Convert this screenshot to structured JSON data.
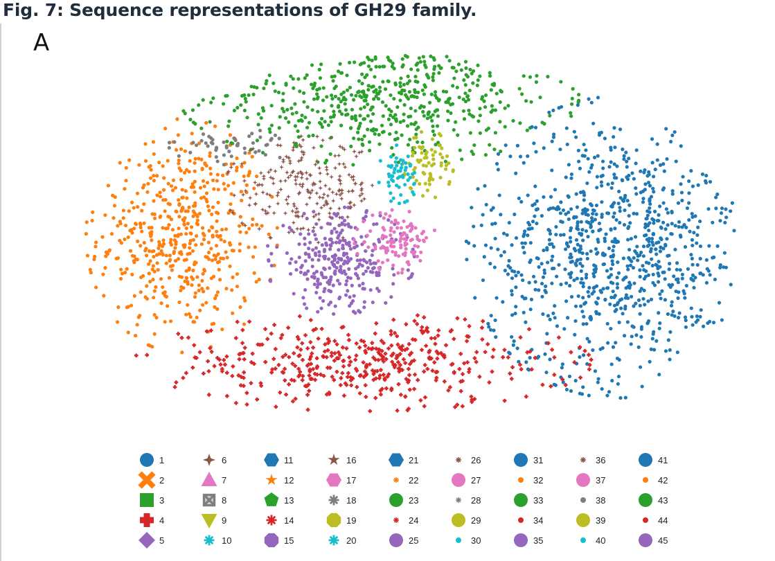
{
  "figure": {
    "title": "Fig. 7: Sequence representations of GH29 family.",
    "panel": "A"
  },
  "chart_data": {
    "type": "scatter",
    "title": "",
    "xlabel": "",
    "ylabel": "",
    "grid": false,
    "legend_placement": "bottom",
    "legend": [
      {
        "label": "1",
        "marker": "circle",
        "color": "#1f77b4",
        "size": "large"
      },
      {
        "label": "2",
        "marker": "x",
        "color": "#ff7f0e",
        "size": "large"
      },
      {
        "label": "3",
        "marker": "square",
        "color": "#2ca02c",
        "size": "large"
      },
      {
        "label": "4",
        "marker": "plus",
        "color": "#d62728",
        "size": "large"
      },
      {
        "label": "5",
        "marker": "diamond",
        "color": "#9467bd",
        "size": "large"
      },
      {
        "label": "6",
        "marker": "star4",
        "color": "#8c564b",
        "size": "medium"
      },
      {
        "label": "7",
        "marker": "triangle",
        "color": "#e377c2",
        "size": "large"
      },
      {
        "label": "8",
        "marker": "xsquare",
        "color": "#7f7f7f",
        "size": "medium"
      },
      {
        "label": "9",
        "marker": "triangle-down",
        "color": "#bcbd22",
        "size": "large"
      },
      {
        "label": "10",
        "marker": "asterisk",
        "color": "#17becf",
        "size": "medium"
      },
      {
        "label": "11",
        "marker": "hexagon",
        "color": "#1f77b4",
        "size": "large"
      },
      {
        "label": "12",
        "marker": "star",
        "color": "#ff7f0e",
        "size": "medium"
      },
      {
        "label": "13",
        "marker": "pentagon",
        "color": "#2ca02c",
        "size": "large"
      },
      {
        "label": "14",
        "marker": "asterisk",
        "color": "#d62728",
        "size": "medium"
      },
      {
        "label": "15",
        "marker": "octagon",
        "color": "#9467bd",
        "size": "large"
      },
      {
        "label": "16",
        "marker": "star",
        "color": "#8c564b",
        "size": "medium"
      },
      {
        "label": "17",
        "marker": "hexagon",
        "color": "#e377c2",
        "size": "large"
      },
      {
        "label": "18",
        "marker": "asterisk",
        "color": "#7f7f7f",
        "size": "medium"
      },
      {
        "label": "19",
        "marker": "octagon",
        "color": "#bcbd22",
        "size": "large"
      },
      {
        "label": "20",
        "marker": "asterisk",
        "color": "#17becf",
        "size": "medium"
      },
      {
        "label": "21",
        "marker": "hexagon",
        "color": "#1f77b4",
        "size": "large"
      },
      {
        "label": "22",
        "marker": "asterisk",
        "color": "#ff7f0e",
        "size": "small"
      },
      {
        "label": "23",
        "marker": "circle",
        "color": "#2ca02c",
        "size": "large"
      },
      {
        "label": "24",
        "marker": "asterisk",
        "color": "#d62728",
        "size": "small"
      },
      {
        "label": "25",
        "marker": "circle",
        "color": "#9467bd",
        "size": "large"
      },
      {
        "label": "26",
        "marker": "asterisk",
        "color": "#8c564b",
        "size": "small"
      },
      {
        "label": "27",
        "marker": "circle",
        "color": "#e377c2",
        "size": "large"
      },
      {
        "label": "28",
        "marker": "asterisk",
        "color": "#7f7f7f",
        "size": "small"
      },
      {
        "label": "29",
        "marker": "circle",
        "color": "#bcbd22",
        "size": "large"
      },
      {
        "label": "30",
        "marker": "circle",
        "color": "#17becf",
        "size": "small"
      },
      {
        "label": "31",
        "marker": "circle",
        "color": "#1f77b4",
        "size": "large"
      },
      {
        "label": "32",
        "marker": "circle",
        "color": "#ff7f0e",
        "size": "small"
      },
      {
        "label": "33",
        "marker": "circle",
        "color": "#2ca02c",
        "size": "large"
      },
      {
        "label": "34",
        "marker": "circle",
        "color": "#d62728",
        "size": "small"
      },
      {
        "label": "35",
        "marker": "circle",
        "color": "#9467bd",
        "size": "large"
      },
      {
        "label": "36",
        "marker": "asterisk",
        "color": "#8c564b",
        "size": "small"
      },
      {
        "label": "37",
        "marker": "circle",
        "color": "#e377c2",
        "size": "large"
      },
      {
        "label": "38",
        "marker": "circle",
        "color": "#7f7f7f",
        "size": "small"
      },
      {
        "label": "39",
        "marker": "circle",
        "color": "#bcbd22",
        "size": "large"
      },
      {
        "label": "40",
        "marker": "circle",
        "color": "#17becf",
        "size": "small"
      },
      {
        "label": "41",
        "marker": "circle",
        "color": "#1f77b4",
        "size": "large"
      },
      {
        "label": "42",
        "marker": "circle",
        "color": "#ff7f0e",
        "size": "small"
      },
      {
        "label": "43",
        "marker": "circle",
        "color": "#2ca02c",
        "size": "large"
      },
      {
        "label": "44",
        "marker": "circle",
        "color": "#d62728",
        "size": "small"
      },
      {
        "label": "45",
        "marker": "circle",
        "color": "#9467bd",
        "size": "large"
      }
    ],
    "clusters": [
      {
        "color": "#ff7f0e",
        "cx": -0.7,
        "cy": 0.08,
        "rx": 0.23,
        "ry": 0.48,
        "count": 520,
        "marker": "circle"
      },
      {
        "color": "#2ca02c",
        "cx": -0.1,
        "cy": 0.8,
        "rx": 0.48,
        "ry": 0.28,
        "count": 620,
        "marker": "circle"
      },
      {
        "color": "#1f77b4",
        "cx": 0.62,
        "cy": 0.02,
        "rx": 0.36,
        "ry": 0.62,
        "count": 980,
        "marker": "circle"
      },
      {
        "color": "#d62728",
        "cx": -0.15,
        "cy": -0.58,
        "rx": 0.55,
        "ry": 0.2,
        "count": 460,
        "marker": "plus"
      },
      {
        "color": "#9467bd",
        "cx": -0.22,
        "cy": -0.05,
        "rx": 0.18,
        "ry": 0.22,
        "count": 300,
        "marker": "circle"
      },
      {
        "color": "#8c564b",
        "cx": -0.32,
        "cy": 0.32,
        "rx": 0.2,
        "ry": 0.22,
        "count": 220,
        "marker": "star4"
      },
      {
        "color": "#e377c2",
        "cx": -0.05,
        "cy": 0.05,
        "rx": 0.1,
        "ry": 0.13,
        "count": 110,
        "marker": "circle"
      },
      {
        "color": "#bcbd22",
        "cx": 0.05,
        "cy": 0.45,
        "rx": 0.06,
        "ry": 0.14,
        "count": 70,
        "marker": "circle"
      },
      {
        "color": "#17becf",
        "cx": -0.04,
        "cy": 0.4,
        "rx": 0.05,
        "ry": 0.12,
        "count": 60,
        "marker": "circle"
      },
      {
        "color": "#7f7f7f",
        "cx": -0.55,
        "cy": 0.55,
        "rx": 0.15,
        "ry": 0.08,
        "count": 50,
        "marker": "circle"
      }
    ]
  }
}
